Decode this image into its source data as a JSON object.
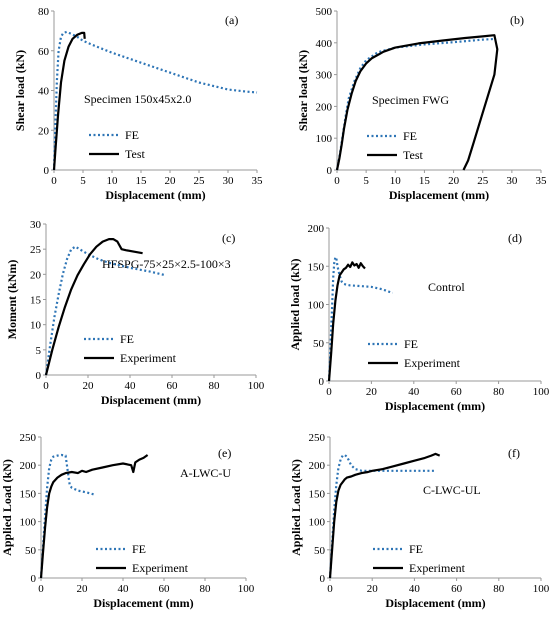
{
  "colors": {
    "fe": "#2e75b6",
    "test": "#000000",
    "axis": "#999999"
  },
  "chart_data": [
    {
      "type": "line",
      "panel_label": "(a)",
      "annotation": "Specimen 150x45x2.0",
      "xlabel": "Displacement (mm)",
      "ylabel": "Shear load (kN)",
      "xlim": [
        0,
        35
      ],
      "ylim": [
        0,
        80
      ],
      "xticks": [
        0,
        5,
        10,
        15,
        20,
        25,
        30,
        35
      ],
      "yticks": [
        0,
        20,
        40,
        60,
        80
      ],
      "legend_position": "lower-left",
      "series": [
        {
          "name": "FE",
          "style": "dotted",
          "x": [
            0,
            0.2,
            0.5,
            0.8,
            1.2,
            1.6,
            2.2,
            3,
            4,
            5,
            7,
            10,
            15,
            20,
            25,
            30,
            33,
            35
          ],
          "y": [
            0,
            20,
            45,
            60,
            67,
            69,
            69.5,
            68.5,
            67,
            65,
            62.5,
            59,
            54,
            49,
            44,
            40.5,
            39.5,
            39
          ]
        },
        {
          "name": "Test",
          "style": "solid",
          "x": [
            0,
            0.3,
            0.7,
            1.2,
            1.8,
            2.5,
            3.2,
            4,
            4.8,
            5.2,
            5.3
          ],
          "y": [
            0,
            12,
            28,
            44,
            55,
            62,
            66,
            68,
            69,
            69,
            66
          ]
        }
      ]
    },
    {
      "type": "line",
      "panel_label": "(b)",
      "annotation": "Specimen FWG",
      "xlabel": "Displacement (mm)",
      "ylabel": "Shear load (kN)",
      "xlim": [
        0,
        35
      ],
      "ylim": [
        0,
        500
      ],
      "xticks": [
        0,
        5,
        10,
        15,
        20,
        25,
        30,
        35
      ],
      "yticks": [
        0,
        100,
        200,
        300,
        400,
        500
      ],
      "legend_position": "lower-left",
      "series": [
        {
          "name": "FE",
          "style": "dotted",
          "x": [
            0,
            0.5,
            1,
            1.5,
            2,
            3,
            4,
            5,
            7,
            10,
            15,
            20,
            25,
            27
          ],
          "y": [
            0,
            50,
            110,
            170,
            225,
            280,
            320,
            345,
            370,
            385,
            395,
            402,
            410,
            412
          ]
        },
        {
          "name": "Test",
          "style": "solid",
          "x": [
            0,
            0.4,
            0.8,
            1.2,
            1.8,
            2.5,
            3.2,
            4,
            5,
            6,
            8,
            10,
            14,
            18,
            22,
            25,
            27,
            27.5,
            27,
            25,
            23.5,
            22.5,
            21.7
          ],
          "y": [
            0,
            35,
            80,
            130,
            190,
            240,
            280,
            310,
            335,
            352,
            372,
            385,
            398,
            407,
            415,
            420,
            424,
            380,
            300,
            180,
            90,
            30,
            0
          ]
        }
      ]
    },
    {
      "type": "line",
      "panel_label": "(c)",
      "annotation": "HFSPG-75×25×2.5-100×3",
      "xlabel": "Displacement (mm)",
      "ylabel": "Moment (kNm)",
      "xlim": [
        0,
        100
      ],
      "ylim": [
        0,
        30
      ],
      "xticks": [
        0,
        20,
        40,
        60,
        80,
        100
      ],
      "yticks": [
        0,
        5,
        10,
        15,
        20,
        25,
        30
      ],
      "legend_position": "lower-left",
      "series": [
        {
          "name": "FE",
          "style": "dotted",
          "x": [
            0,
            2,
            4,
            6,
            8,
            10,
            12,
            14,
            16,
            20,
            25,
            30,
            40,
            50,
            57
          ],
          "y": [
            0,
            6,
            11.5,
            16,
            20,
            23,
            25,
            25.5,
            25,
            24,
            23,
            22.3,
            21.3,
            20.5,
            19.8
          ]
        },
        {
          "name": "Experiment",
          "style": "solid",
          "x": [
            0,
            3,
            6,
            9,
            12,
            15,
            18,
            21,
            24,
            27,
            30,
            32,
            34,
            36,
            38,
            42,
            46
          ],
          "y": [
            0,
            5,
            9.5,
            13.5,
            17,
            19.8,
            22,
            24,
            25.5,
            26.5,
            27,
            27,
            26.5,
            25,
            24.8,
            24.5,
            24.2
          ]
        }
      ]
    },
    {
      "type": "line",
      "panel_label": "(d)",
      "annotation": "Control",
      "xlabel": "Displacement (mm)",
      "ylabel": "Applied load (kN)",
      "xlim": [
        0,
        100
      ],
      "ylim": [
        0,
        200
      ],
      "xticks": [
        0,
        20,
        40,
        60,
        80,
        100
      ],
      "yticks": [
        0,
        50,
        100,
        150,
        200
      ],
      "legend_position": "lower-left",
      "series": [
        {
          "name": "FE",
          "style": "dotted",
          "x": [
            0,
            0.5,
            1,
            1.5,
            2,
            2.5,
            3,
            3.5,
            4,
            5,
            6,
            7,
            8,
            10,
            15,
            20,
            25,
            30
          ],
          "y": [
            0,
            30,
            65,
            100,
            135,
            155,
            162,
            160,
            150,
            138,
            130,
            127,
            126,
            125,
            124,
            123,
            120,
            115
          ]
        },
        {
          "name": "Experiment",
          "style": "solid",
          "x": [
            0,
            1,
            2,
            3,
            4,
            5,
            6,
            7,
            8,
            9,
            10,
            11,
            12,
            13,
            14,
            15,
            16,
            17
          ],
          "y": [
            0,
            35,
            75,
            105,
            125,
            138,
            142,
            146,
            148,
            152,
            149,
            155,
            151,
            153,
            148,
            154,
            150,
            147
          ]
        }
      ]
    },
    {
      "type": "line",
      "panel_label": "(e)",
      "annotation": "A-LWC-U",
      "xlabel": "Displacement (mm)",
      "ylabel": "Applied Load (kN)",
      "xlim": [
        0,
        100
      ],
      "ylim": [
        0,
        250
      ],
      "xticks": [
        0,
        20,
        40,
        60,
        80,
        100
      ],
      "yticks": [
        0,
        50,
        100,
        150,
        200,
        250
      ],
      "legend_position": "lower-left",
      "series": [
        {
          "name": "FE",
          "style": "dotted",
          "x": [
            0,
            1,
            2,
            3,
            4,
            5,
            6,
            8,
            10,
            12,
            13,
            14,
            15,
            18,
            22,
            26
          ],
          "y": [
            0,
            55,
            110,
            160,
            195,
            210,
            215,
            217,
            218,
            217,
            190,
            165,
            160,
            155,
            152,
            148
          ]
        },
        {
          "name": "Experiment",
          "style": "solid",
          "x": [
            0,
            1,
            2,
            3,
            4,
            5,
            6,
            8,
            10,
            12,
            15,
            18,
            20,
            22,
            25,
            30,
            35,
            40,
            44,
            45,
            46,
            48,
            50,
            52
          ],
          "y": [
            0,
            45,
            90,
            125,
            150,
            162,
            170,
            178,
            183,
            186,
            188,
            186,
            190,
            188,
            192,
            196,
            200,
            203,
            200,
            188,
            205,
            210,
            213,
            218
          ]
        }
      ]
    },
    {
      "type": "line",
      "panel_label": "(f)",
      "annotation": "C-LWC-UL",
      "xlabel": "Displacement (mm)",
      "ylabel": "Applied Load (kN)",
      "xlim": [
        0,
        100
      ],
      "ylim": [
        0,
        250
      ],
      "xticks": [
        0,
        20,
        40,
        60,
        80,
        100
      ],
      "yticks": [
        0,
        50,
        100,
        150,
        200,
        250
      ],
      "legend_position": "lower-left",
      "series": [
        {
          "name": "FE",
          "style": "dotted",
          "x": [
            0,
            1,
            2,
            3,
            4,
            5,
            6,
            7,
            8,
            9,
            10,
            12,
            15,
            20,
            30,
            40,
            50
          ],
          "y": [
            0,
            60,
            120,
            165,
            195,
            210,
            217,
            218,
            215,
            208,
            200,
            193,
            190,
            190,
            190,
            190,
            190
          ]
        },
        {
          "name": "Experiment",
          "style": "solid",
          "x": [
            0,
            1,
            2,
            3,
            4,
            5,
            6,
            7,
            8,
            10,
            12,
            15,
            18,
            20,
            25,
            30,
            35,
            40,
            45,
            48,
            50,
            52
          ],
          "y": [
            0,
            50,
            100,
            135,
            155,
            165,
            170,
            175,
            178,
            180,
            183,
            186,
            188,
            190,
            193,
            198,
            203,
            208,
            213,
            217,
            220,
            217
          ]
        }
      ]
    }
  ]
}
